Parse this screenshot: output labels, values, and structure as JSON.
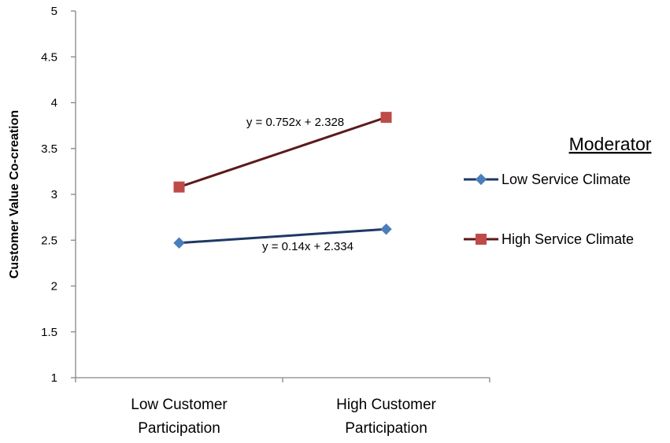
{
  "chart_data": {
    "type": "line",
    "ylabel": "Customer Value Co-creation",
    "xlabel": "",
    "categories": [
      "Low Customer\nParticipation",
      "High Customer\nParticipation"
    ],
    "ylim": [
      1,
      5
    ],
    "yticks": [
      "1",
      "1.5",
      "2",
      "2.5",
      "3",
      "3.5",
      "4",
      "4.5",
      "5"
    ],
    "grid": false,
    "series": [
      {
        "name": "Low Service Climate",
        "values": [
          2.47,
          2.62
        ],
        "marker": "diamond",
        "line_color": "#1F3864",
        "marker_color": "#4A7EBB",
        "equation": "y = 0.14x + 2.334"
      },
      {
        "name": "High Service Climate",
        "values": [
          3.08,
          3.84
        ],
        "marker": "square",
        "line_color": "#5C1A1A",
        "marker_color": "#BE4B48",
        "equation": "y = 0.752x + 2.328"
      }
    ],
    "legend": {
      "title": "Moderator",
      "position": "right"
    }
  }
}
